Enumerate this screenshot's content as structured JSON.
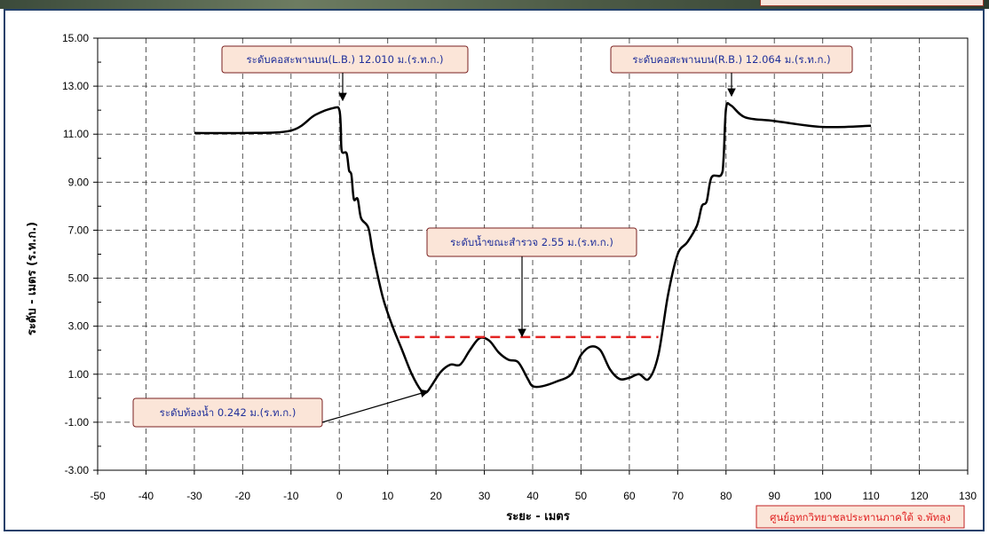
{
  "chart_data": {
    "type": "line",
    "xlabel": "ระยะ - เมตร",
    "ylabel": "ระดับ - เมตร (ร.ท.ก.)",
    "xlim": [
      -50,
      130
    ],
    "ylim": [
      -3,
      15
    ],
    "x_ticks": [
      "-50",
      "-40",
      "-30",
      "-20",
      "-10",
      "0",
      "10",
      "20",
      "30",
      "40",
      "50",
      "60",
      "70",
      "80",
      "90",
      "100",
      "110",
      "120",
      "130"
    ],
    "y_ticks": [
      "15.00",
      "13.00",
      "11.00",
      "9.00",
      "7.00",
      "5.00",
      "3.00",
      "1.00",
      "-1.00",
      "-3.00"
    ],
    "grid": true,
    "series": [
      {
        "role": "cross-section",
        "color": "#000000",
        "points": [
          [
            -30,
            11.05
          ],
          [
            -20,
            11.05
          ],
          [
            -10,
            11.15
          ],
          [
            -5,
            11.8
          ],
          [
            -1,
            12.1
          ],
          [
            0,
            12.01
          ],
          [
            0.3,
            11.3
          ],
          [
            0.5,
            10.3
          ],
          [
            1.5,
            10.2
          ],
          [
            2,
            9.5
          ],
          [
            2.5,
            9.3
          ],
          [
            3,
            8.3
          ],
          [
            3.8,
            8.3
          ],
          [
            4.5,
            7.5
          ],
          [
            6,
            7.1
          ],
          [
            7,
            6.0
          ],
          [
            9,
            4.2
          ],
          [
            11,
            3.0
          ],
          [
            13,
            2.0
          ],
          [
            15,
            1.0
          ],
          [
            17,
            0.3
          ],
          [
            18,
            0.242
          ],
          [
            19,
            0.5
          ],
          [
            21,
            1.1
          ],
          [
            23,
            1.4
          ],
          [
            25,
            1.4
          ],
          [
            27,
            2.0
          ],
          [
            29,
            2.5
          ],
          [
            31,
            2.4
          ],
          [
            33,
            1.9
          ],
          [
            35,
            1.6
          ],
          [
            37,
            1.5
          ],
          [
            39,
            0.8
          ],
          [
            40,
            0.5
          ],
          [
            42,
            0.5
          ],
          [
            45,
            0.7
          ],
          [
            48,
            1.0
          ],
          [
            50,
            1.8
          ],
          [
            52,
            2.15
          ],
          [
            54,
            2.0
          ],
          [
            56,
            1.2
          ],
          [
            58,
            0.8
          ],
          [
            60,
            0.85
          ],
          [
            62,
            1.0
          ],
          [
            64,
            0.8
          ],
          [
            66,
            1.8
          ],
          [
            68,
            4.3
          ],
          [
            70,
            6.0
          ],
          [
            72,
            6.5
          ],
          [
            74,
            7.2
          ],
          [
            75,
            8.0
          ],
          [
            76,
            8.2
          ],
          [
            77,
            9.2
          ],
          [
            79,
            9.3
          ],
          [
            79.5,
            10.0
          ],
          [
            80,
            12.064
          ],
          [
            81,
            12.2
          ],
          [
            84,
            11.7
          ],
          [
            90,
            11.55
          ],
          [
            100,
            11.3
          ],
          [
            110,
            11.35
          ]
        ]
      },
      {
        "role": "water-level",
        "color": "#e32322",
        "style": "dashed",
        "points": [
          [
            12.5,
            2.55
          ],
          [
            66,
            2.55
          ]
        ]
      }
    ],
    "annotations": [
      {
        "text": "ระดับคอสะพานบน(L.B.) 12.010 ม.(ร.ท.ก.)"
      },
      {
        "text": "ระดับคอสะพานบน(R.B.) 12.064 ม.(ร.ท.ก.)"
      },
      {
        "text": "ระดับน้ำขณะสำรวจ 2.55 ม.(ร.ท.ก.)"
      },
      {
        "text": "ระดับท้องน้ำ 0.242 ม.(ร.ท.ก.)"
      }
    ]
  },
  "credit": "ศูนย์อุทกวิทยาชลประทานภาคใต้ จ.พัทลุง",
  "colors": {
    "frame": "#23406a",
    "callout_fill": "#fbe5d8",
    "callout_text": "#1f2f9a",
    "credit_text": "#e02020"
  }
}
